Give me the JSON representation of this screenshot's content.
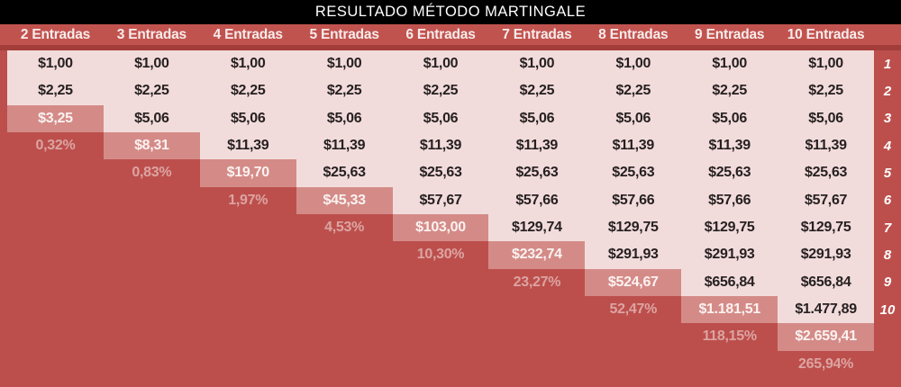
{
  "colors": {
    "page_background": "#BC4F4C",
    "title_bar_background": "#000000",
    "title_text": "#FFFFFF",
    "header_background": "#C1534F",
    "header_separator": "#A33D3A",
    "header_text": "#F8ECEB",
    "cell_light_background": "#F2DCDB",
    "cell_value_text": "#262021",
    "cell_highlight_background": "#D48B87",
    "cell_highlight_text": "#FBF2F1",
    "percent_text": "#DCA4A2",
    "row_number_text": "#FFFFFF"
  },
  "chart_data": {
    "type": "table",
    "title": "RESULTADO MÉTODO MARTINGALE",
    "columns": [
      "2 Entradas",
      "3 Entradas",
      "4 Entradas",
      "5 Entradas",
      "6 Entradas",
      "7 Entradas",
      "8 Entradas",
      "9 Entradas",
      "10 Entradas"
    ],
    "row_numbers": [
      "1",
      "2",
      "3",
      "4",
      "5",
      "6",
      "7",
      "8",
      "9",
      "10",
      "",
      ""
    ],
    "rows": [
      {
        "cells": [
          {
            "k": "val",
            "t": "$1,00"
          },
          {
            "k": "val",
            "t": "$1,00"
          },
          {
            "k": "val",
            "t": "$1,00"
          },
          {
            "k": "val",
            "t": "$1,00"
          },
          {
            "k": "val",
            "t": "$1,00"
          },
          {
            "k": "val",
            "t": "$1,00"
          },
          {
            "k": "val",
            "t": "$1,00"
          },
          {
            "k": "val",
            "t": "$1,00"
          },
          {
            "k": "val",
            "t": "$1,00"
          }
        ]
      },
      {
        "cells": [
          {
            "k": "val",
            "t": "$2,25"
          },
          {
            "k": "val",
            "t": "$2,25"
          },
          {
            "k": "val",
            "t": "$2,25"
          },
          {
            "k": "val",
            "t": "$2,25"
          },
          {
            "k": "val",
            "t": "$2,25"
          },
          {
            "k": "val",
            "t": "$2,25"
          },
          {
            "k": "val",
            "t": "$2,25"
          },
          {
            "k": "val",
            "t": "$2,25"
          },
          {
            "k": "val",
            "t": "$2,25"
          }
        ]
      },
      {
        "cells": [
          {
            "k": "hl",
            "t": "$3,25"
          },
          {
            "k": "val",
            "t": "$5,06"
          },
          {
            "k": "val",
            "t": "$5,06"
          },
          {
            "k": "val",
            "t": "$5,06"
          },
          {
            "k": "val",
            "t": "$5,06"
          },
          {
            "k": "val",
            "t": "$5,06"
          },
          {
            "k": "val",
            "t": "$5,06"
          },
          {
            "k": "val",
            "t": "$5,06"
          },
          {
            "k": "val",
            "t": "$5,06"
          }
        ]
      },
      {
        "cells": [
          {
            "k": "pct",
            "t": "0,32%"
          },
          {
            "k": "hl",
            "t": "$8,31"
          },
          {
            "k": "val",
            "t": "$11,39"
          },
          {
            "k": "val",
            "t": "$11,39"
          },
          {
            "k": "val",
            "t": "$11,39"
          },
          {
            "k": "val",
            "t": "$11,39"
          },
          {
            "k": "val",
            "t": "$11,39"
          },
          {
            "k": "val",
            "t": "$11,39"
          },
          {
            "k": "val",
            "t": "$11,39"
          }
        ]
      },
      {
        "cells": [
          {
            "k": "empty",
            "t": ""
          },
          {
            "k": "pct",
            "t": "0,83%"
          },
          {
            "k": "hl",
            "t": "$19,70"
          },
          {
            "k": "val",
            "t": "$25,63"
          },
          {
            "k": "val",
            "t": "$25,63"
          },
          {
            "k": "val",
            "t": "$25,63"
          },
          {
            "k": "val",
            "t": "$25,63"
          },
          {
            "k": "val",
            "t": "$25,63"
          },
          {
            "k": "val",
            "t": "$25,63"
          }
        ]
      },
      {
        "cells": [
          {
            "k": "empty",
            "t": ""
          },
          {
            "k": "empty",
            "t": ""
          },
          {
            "k": "pct",
            "t": "1,97%"
          },
          {
            "k": "hl",
            "t": "$45,33"
          },
          {
            "k": "val",
            "t": "$57,67"
          },
          {
            "k": "val",
            "t": "$57,66"
          },
          {
            "k": "val",
            "t": "$57,66"
          },
          {
            "k": "val",
            "t": "$57,66"
          },
          {
            "k": "val",
            "t": "$57,67"
          }
        ]
      },
      {
        "cells": [
          {
            "k": "empty",
            "t": ""
          },
          {
            "k": "empty",
            "t": ""
          },
          {
            "k": "empty",
            "t": ""
          },
          {
            "k": "pct",
            "t": "4,53%"
          },
          {
            "k": "hl",
            "t": "$103,00"
          },
          {
            "k": "val",
            "t": "$129,74"
          },
          {
            "k": "val",
            "t": "$129,75"
          },
          {
            "k": "val",
            "t": "$129,75"
          },
          {
            "k": "val",
            "t": "$129,75"
          }
        ]
      },
      {
        "cells": [
          {
            "k": "empty",
            "t": ""
          },
          {
            "k": "empty",
            "t": ""
          },
          {
            "k": "empty",
            "t": ""
          },
          {
            "k": "empty",
            "t": ""
          },
          {
            "k": "pct",
            "t": "10,30%"
          },
          {
            "k": "hl",
            "t": "$232,74"
          },
          {
            "k": "val",
            "t": "$291,93"
          },
          {
            "k": "val",
            "t": "$291,93"
          },
          {
            "k": "val",
            "t": "$291,93"
          }
        ]
      },
      {
        "cells": [
          {
            "k": "empty",
            "t": ""
          },
          {
            "k": "empty",
            "t": ""
          },
          {
            "k": "empty",
            "t": ""
          },
          {
            "k": "empty",
            "t": ""
          },
          {
            "k": "empty",
            "t": ""
          },
          {
            "k": "pct",
            "t": "23,27%"
          },
          {
            "k": "hl",
            "t": "$524,67"
          },
          {
            "k": "val",
            "t": "$656,84"
          },
          {
            "k": "val",
            "t": "$656,84"
          }
        ]
      },
      {
        "cells": [
          {
            "k": "empty",
            "t": ""
          },
          {
            "k": "empty",
            "t": ""
          },
          {
            "k": "empty",
            "t": ""
          },
          {
            "k": "empty",
            "t": ""
          },
          {
            "k": "empty",
            "t": ""
          },
          {
            "k": "empty",
            "t": ""
          },
          {
            "k": "pct",
            "t": "52,47%"
          },
          {
            "k": "hl",
            "t": "$1.181,51"
          },
          {
            "k": "val",
            "t": "$1.477,89"
          }
        ]
      },
      {
        "cells": [
          {
            "k": "empty",
            "t": ""
          },
          {
            "k": "empty",
            "t": ""
          },
          {
            "k": "empty",
            "t": ""
          },
          {
            "k": "empty",
            "t": ""
          },
          {
            "k": "empty",
            "t": ""
          },
          {
            "k": "empty",
            "t": ""
          },
          {
            "k": "empty",
            "t": ""
          },
          {
            "k": "pct",
            "t": "118,15%"
          },
          {
            "k": "hl",
            "t": "$2.659,41"
          }
        ]
      },
      {
        "cells": [
          {
            "k": "empty",
            "t": ""
          },
          {
            "k": "empty",
            "t": ""
          },
          {
            "k": "empty",
            "t": ""
          },
          {
            "k": "empty",
            "t": ""
          },
          {
            "k": "empty",
            "t": ""
          },
          {
            "k": "empty",
            "t": ""
          },
          {
            "k": "empty",
            "t": ""
          },
          {
            "k": "empty",
            "t": ""
          },
          {
            "k": "pct",
            "t": "265,94%"
          }
        ]
      }
    ]
  }
}
